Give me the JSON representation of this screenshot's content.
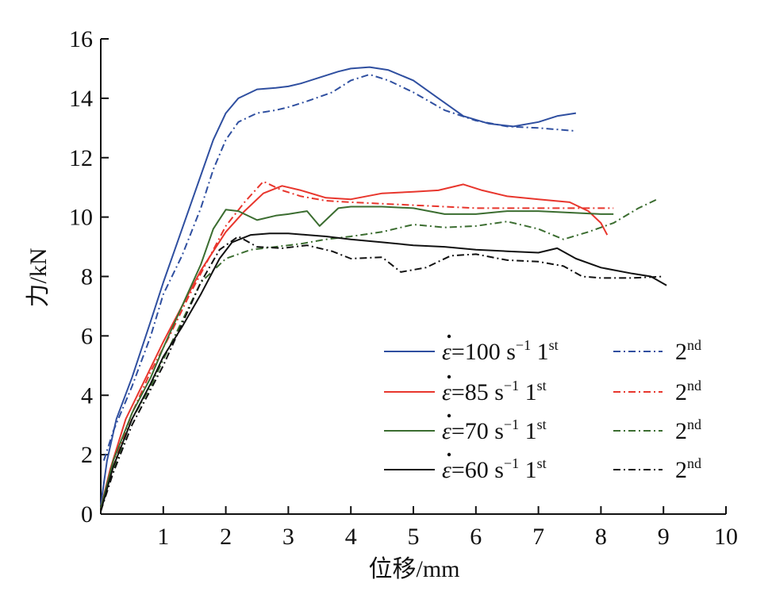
{
  "chart_data": {
    "type": "line",
    "xlabel": "位移/mm",
    "ylabel": "力/kN",
    "xlim": [
      0,
      10
    ],
    "ylim": [
      0,
      16
    ],
    "xticks": [
      "1",
      "2",
      "3",
      "4",
      "5",
      "6",
      "7",
      "8",
      "9",
      "10"
    ],
    "yticks": [
      "0",
      "2",
      "4",
      "6",
      "8",
      "10",
      "12",
      "14",
      "16"
    ],
    "grid": false,
    "legend_position": "bottom-right",
    "series": [
      {
        "legend": {
          "prefix": "ε",
          "value": "=100 s",
          "exp": "−1",
          "run": " 1",
          "sup": "st"
        },
        "color": "#2f4fa0",
        "dash": "solid",
        "x": [
          0,
          0.1,
          0.25,
          0.5,
          0.8,
          1.0,
          1.2,
          1.5,
          1.8,
          2.0,
          2.2,
          2.5,
          2.8,
          3.0,
          3.2,
          3.5,
          3.8,
          4.0,
          4.3,
          4.6,
          5.0,
          5.4,
          5.8,
          6.2,
          6.6,
          7.0,
          7.3,
          7.6
        ],
        "y": [
          0.3,
          1.8,
          3.2,
          4.6,
          6.5,
          7.8,
          9.0,
          10.8,
          12.6,
          13.5,
          14.0,
          14.3,
          14.35,
          14.4,
          14.5,
          14.7,
          14.9,
          15.0,
          15.05,
          14.95,
          14.6,
          14.0,
          13.4,
          13.15,
          13.05,
          13.2,
          13.4,
          13.5
        ]
      },
      {
        "legend": {
          "value": "2",
          "sup": "nd"
        },
        "color": "#2f4fa0",
        "dash": "dashdot",
        "x": [
          0.05,
          0.2,
          0.5,
          0.8,
          1.0,
          1.3,
          1.6,
          1.8,
          2.0,
          2.2,
          2.5,
          2.8,
          3.0,
          3.3,
          3.7,
          4.0,
          4.3,
          4.6,
          5.0,
          5.5,
          6.0,
          6.5,
          7.0,
          7.6
        ],
        "y": [
          1.8,
          2.8,
          4.3,
          6.0,
          7.4,
          8.7,
          10.3,
          11.6,
          12.6,
          13.2,
          13.5,
          13.6,
          13.7,
          13.9,
          14.2,
          14.6,
          14.8,
          14.6,
          14.2,
          13.6,
          13.25,
          13.05,
          13.0,
          12.9
        ]
      },
      {
        "legend": {
          "prefix": "ε",
          "value": "=85 s",
          "exp": "−1",
          "run": " 1",
          "sup": "st"
        },
        "color": "#e8362d",
        "dash": "solid",
        "x": [
          0,
          0.15,
          0.4,
          0.7,
          1.0,
          1.3,
          1.6,
          2.0,
          2.3,
          2.6,
          2.9,
          3.2,
          3.6,
          4.0,
          4.5,
          5.0,
          5.4,
          5.8,
          6.1,
          6.5,
          7.0,
          7.5,
          7.8,
          8.0,
          8.1
        ],
        "y": [
          0.2,
          1.5,
          3.2,
          4.5,
          5.8,
          7.0,
          8.2,
          9.5,
          10.2,
          10.8,
          11.05,
          10.9,
          10.65,
          10.6,
          10.8,
          10.85,
          10.9,
          11.1,
          10.9,
          10.7,
          10.6,
          10.5,
          10.2,
          9.8,
          9.4
        ]
      },
      {
        "legend": {
          "value": "2",
          "sup": "nd"
        },
        "color": "#e8362d",
        "dash": "dashdot",
        "x": [
          0,
          0.2,
          0.5,
          0.8,
          1.1,
          1.4,
          1.7,
          2.0,
          2.3,
          2.6,
          2.9,
          3.2,
          3.6,
          4.0,
          4.5,
          5.0,
          5.5,
          6.0,
          6.5,
          7.0,
          7.5,
          8.0,
          8.2
        ],
        "y": [
          0.1,
          1.6,
          3.4,
          4.8,
          6.0,
          7.3,
          8.5,
          9.7,
          10.5,
          11.2,
          10.9,
          10.7,
          10.55,
          10.5,
          10.45,
          10.4,
          10.35,
          10.3,
          10.3,
          10.3,
          10.3,
          10.3,
          10.3
        ]
      },
      {
        "legend": {
          "prefix": "ε",
          "value": "=70 s",
          "exp": "−1",
          "run": " 1",
          "sup": "st"
        },
        "color": "#3b6d30",
        "dash": "solid",
        "x": [
          0,
          0.2,
          0.5,
          0.8,
          1.0,
          1.3,
          1.6,
          1.8,
          2.0,
          2.2,
          2.5,
          2.8,
          3.0,
          3.3,
          3.5,
          3.8,
          4.0,
          4.5,
          5.0,
          5.5,
          6.0,
          6.5,
          7.0,
          7.5,
          8.0,
          8.2
        ],
        "y": [
          0.2,
          1.8,
          3.4,
          4.6,
          5.6,
          7.0,
          8.4,
          9.6,
          10.25,
          10.2,
          9.9,
          10.05,
          10.1,
          10.2,
          9.7,
          10.3,
          10.35,
          10.35,
          10.3,
          10.1,
          10.1,
          10.2,
          10.2,
          10.15,
          10.1,
          10.1
        ]
      },
      {
        "legend": {
          "value": "2",
          "sup": "nd"
        },
        "color": "#3b6d30",
        "dash": "dashdot",
        "x": [
          0,
          0.2,
          0.5,
          0.8,
          1.0,
          1.3,
          1.6,
          2.0,
          2.4,
          2.8,
          3.2,
          3.6,
          4.0,
          4.5,
          5.0,
          5.5,
          6.0,
          6.5,
          7.0,
          7.4,
          7.8,
          8.2,
          8.6,
          8.9
        ],
        "y": [
          0.1,
          1.5,
          3.2,
          4.3,
          5.2,
          6.5,
          7.8,
          8.6,
          8.9,
          9.0,
          9.1,
          9.25,
          9.35,
          9.5,
          9.75,
          9.65,
          9.7,
          9.85,
          9.6,
          9.25,
          9.5,
          9.8,
          10.3,
          10.6
        ]
      },
      {
        "legend": {
          "prefix": "ε",
          "value": "=60 s",
          "exp": "−1",
          "run": " 1",
          "sup": "st"
        },
        "color": "#111111",
        "dash": "solid",
        "x": [
          0,
          0.2,
          0.5,
          0.8,
          1.0,
          1.3,
          1.6,
          1.9,
          2.1,
          2.4,
          2.7,
          3.0,
          3.3,
          3.6,
          4.0,
          4.5,
          5.0,
          5.5,
          6.0,
          6.5,
          7.0,
          7.3,
          7.6,
          8.0,
          8.5,
          8.8,
          9.05
        ],
        "y": [
          0.1,
          1.6,
          3.2,
          4.4,
          5.3,
          6.3,
          7.4,
          8.6,
          9.15,
          9.4,
          9.45,
          9.45,
          9.4,
          9.35,
          9.25,
          9.15,
          9.05,
          9.0,
          8.9,
          8.85,
          8.8,
          8.95,
          8.6,
          8.3,
          8.1,
          8.0,
          7.7
        ]
      },
      {
        "legend": {
          "value": "2",
          "sup": "nd"
        },
        "color": "#111111",
        "dash": "dashdot",
        "x": [
          0,
          0.2,
          0.5,
          0.8,
          1.0,
          1.3,
          1.6,
          1.9,
          2.2,
          2.5,
          2.9,
          3.3,
          3.7,
          4.0,
          4.5,
          4.8,
          5.2,
          5.6,
          6.0,
          6.5,
          7.0,
          7.4,
          7.7,
          8.0,
          8.5,
          9.0
        ],
        "y": [
          0.1,
          1.4,
          3.0,
          4.2,
          5.0,
          6.4,
          7.8,
          8.9,
          9.35,
          9.0,
          8.95,
          9.05,
          8.85,
          8.6,
          8.65,
          8.15,
          8.3,
          8.7,
          8.75,
          8.55,
          8.5,
          8.35,
          8.0,
          7.95,
          7.95,
          8.0
        ]
      }
    ]
  }
}
